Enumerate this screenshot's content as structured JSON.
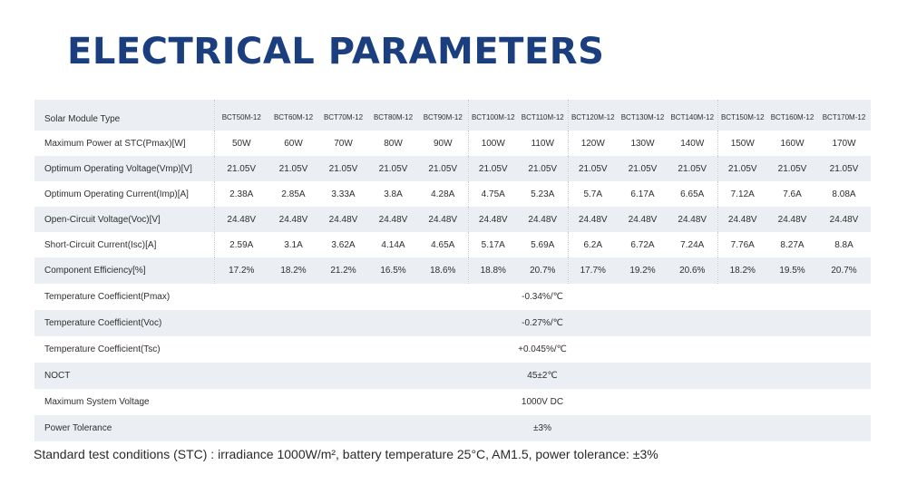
{
  "title": "ELECTRICAL PARAMETERS",
  "table": {
    "header_label": "Solar Module Type",
    "models": [
      "BCT50M-12",
      "BCT60M-12",
      "BCT70M-12",
      "BCT80M-12",
      "BCT90M-12",
      "BCT100M-12",
      "BCT110M-12",
      "BCT120M-12",
      "BCT130M-12",
      "BCT140M-12",
      "BCT150M-12",
      "BCT160M-12",
      "BCT170M-12"
    ],
    "rows": [
      {
        "label": "Maximum Power at STC(Pmax)[W]",
        "values": [
          "50W",
          "60W",
          "70W",
          "80W",
          "90W",
          "100W",
          "110W",
          "120W",
          "130W",
          "140W",
          "150W",
          "160W",
          "170W"
        ]
      },
      {
        "label": "Optimum Operating Voltage(Vmp)[V]",
        "values": [
          "21.05V",
          "21.05V",
          "21.05V",
          "21.05V",
          "21.05V",
          "21.05V",
          "21.05V",
          "21.05V",
          "21.05V",
          "21.05V",
          "21.05V",
          "21.05V",
          "21.05V"
        ]
      },
      {
        "label": "Optimum Operating Current(Imp)[A]",
        "values": [
          "2.38A",
          "2.85A",
          "3.33A",
          "3.8A",
          "4.28A",
          "4.75A",
          "5.23A",
          "5.7A",
          "6.17A",
          "6.65A",
          "7.12A",
          "7.6A",
          "8.08A"
        ]
      },
      {
        "label": "Open-Circuit Voltage(Voc)[V]",
        "values": [
          "24.48V",
          "24.48V",
          "24.48V",
          "24.48V",
          "24.48V",
          "24.48V",
          "24.48V",
          "24.48V",
          "24.48V",
          "24.48V",
          "24.48V",
          "24.48V",
          "24.48V"
        ]
      },
      {
        "label": "Short-Circuit Current(Isc)[A]",
        "values": [
          "2.59A",
          "3.1A",
          "3.62A",
          "4.14A",
          "4.65A",
          "5.17A",
          "5.69A",
          "6.2A",
          "6.72A",
          "7.24A",
          "7.76A",
          "8.27A",
          "8.8A"
        ]
      },
      {
        "label": "Component Efficiency[%]",
        "values": [
          "17.2%",
          "18.2%",
          "21.2%",
          "16.5%",
          "18.6%",
          "18.8%",
          "20.7%",
          "17.7%",
          "19.2%",
          "20.6%",
          "18.2%",
          "19.5%",
          "20.7%"
        ]
      }
    ],
    "common_rows": [
      {
        "label": "Temperature Coefficient(Pmax)",
        "value": "-0.34%/℃"
      },
      {
        "label": "Temperature Coefficient(Voc)",
        "value": "-0.27%/℃"
      },
      {
        "label": "Temperature Coefficient(Tsc)",
        "value": "+0.045%/℃"
      },
      {
        "label": "NOCT",
        "value": "45±2℃"
      },
      {
        "label": "Maximum System Voltage",
        "value": "1000V DC"
      },
      {
        "label": "Power Tolerance",
        "value": "±3%"
      }
    ]
  },
  "footnote": "Standard test conditions (STC) : irradiance 1000W/m², battery temperature 25°C, AM1.5, power tolerance: ±3%"
}
